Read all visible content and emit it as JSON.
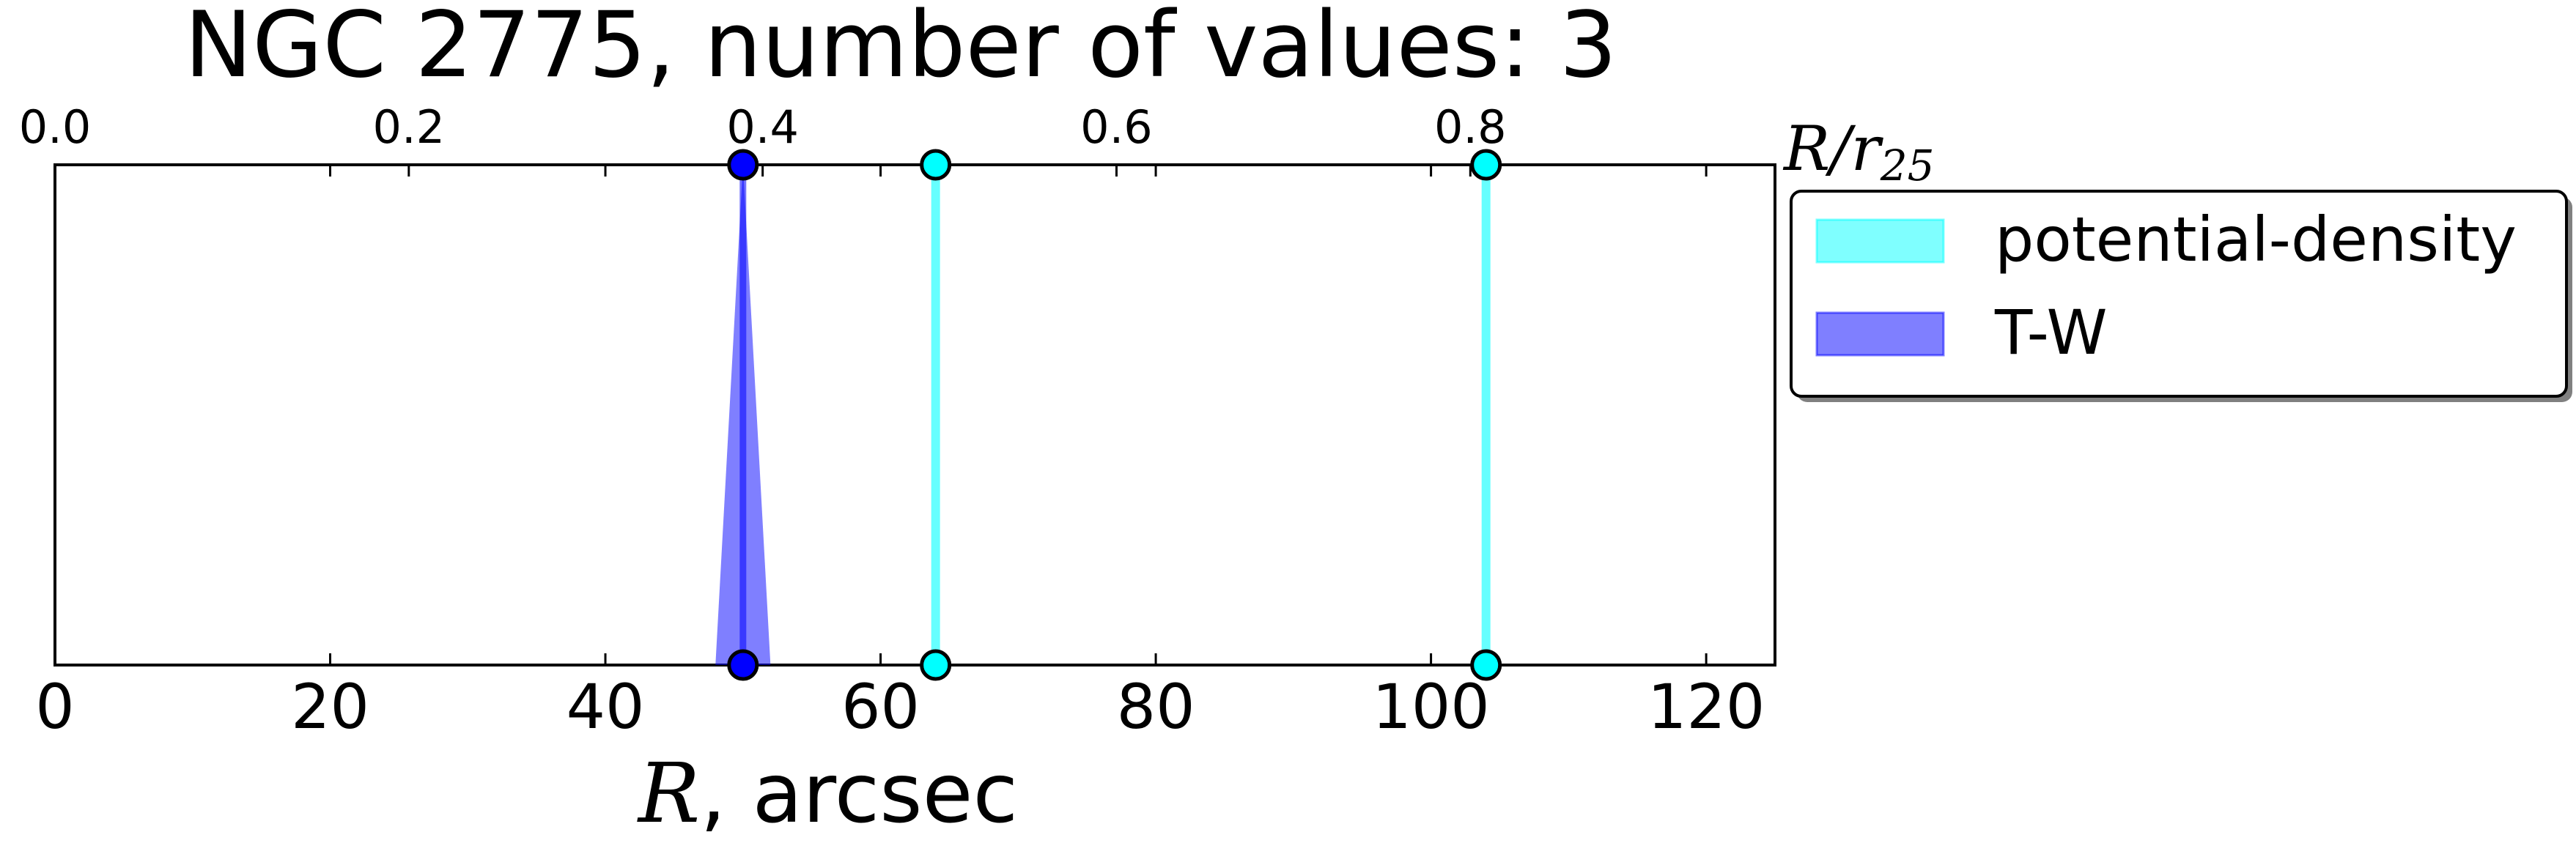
{
  "chart_data": {
    "type": "scatter",
    "title": "NGC 2775, number of values: 3",
    "xlabel_symbol": "R",
    "xlabel_unit": ", arcsec",
    "xlim": [
      0,
      125
    ],
    "xticks": [
      0,
      20,
      40,
      60,
      80,
      100,
      120
    ],
    "top_axis": {
      "label_R": "R",
      "label_slash": "/",
      "label_r": "r",
      "label_sub": "25",
      "xlim": [
        0,
        0.9722
      ],
      "ticks": [
        "0.0",
        "0.2",
        "0.4",
        "0.6",
        "0.8"
      ],
      "tick_values": [
        0.0,
        0.2,
        0.4,
        0.6,
        0.8
      ]
    },
    "grid": false,
    "legend_position": "right, outside axes, top",
    "series": [
      {
        "name": "potential-density",
        "color": "#00ffff",
        "values": [
          64,
          104
        ],
        "uncertainty": [
          0,
          0
        ]
      },
      {
        "name": "T-W",
        "color": "#0000ff",
        "values": [
          50
        ],
        "uncertainty": [
          2
        ]
      }
    ]
  }
}
